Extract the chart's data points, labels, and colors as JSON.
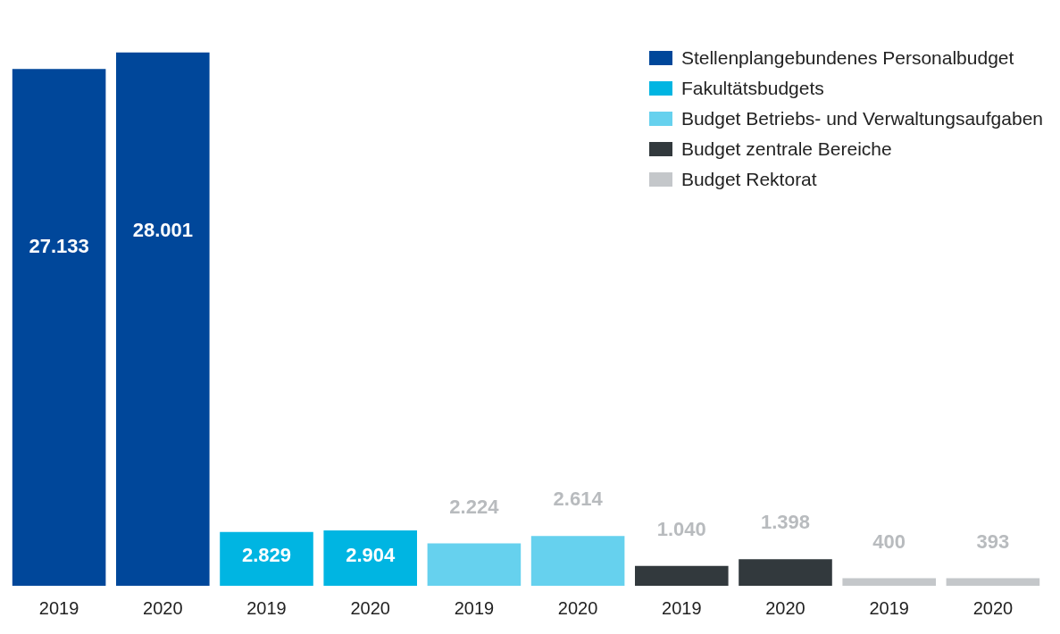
{
  "chart_data": {
    "type": "bar",
    "categories": [
      "2019",
      "2020",
      "2019",
      "2020",
      "2019",
      "2020",
      "2019",
      "2020",
      "2019",
      "2020"
    ],
    "series": [
      {
        "name": "Stellenplangebundenes Personalbudget",
        "color": "#00479a",
        "values": [
          27133,
          28001,
          null,
          null,
          null,
          null,
          null,
          null,
          null,
          null
        ],
        "value_labels": [
          "27.133",
          "28.001",
          null,
          null,
          null,
          null,
          null,
          null,
          null,
          null
        ]
      },
      {
        "name": "Fakultätsbudgets",
        "color": "#00b5e2",
        "values": [
          null,
          null,
          2829,
          2904,
          null,
          null,
          null,
          null,
          null,
          null
        ],
        "value_labels": [
          null,
          null,
          "2.829",
          "2.904",
          null,
          null,
          null,
          null,
          null,
          null
        ]
      },
      {
        "name": "Budget Betriebs- und Verwaltungsaufgaben",
        "color": "#66d1ee",
        "values": [
          null,
          null,
          null,
          null,
          2224,
          2614,
          null,
          null,
          null,
          null
        ],
        "value_labels": [
          null,
          null,
          null,
          null,
          "2.224",
          "2.614",
          null,
          null,
          null,
          null
        ]
      },
      {
        "name": "Budget zentrale Bereiche",
        "color": "#32393d",
        "values": [
          null,
          null,
          null,
          null,
          null,
          null,
          1040,
          1398,
          null,
          null
        ],
        "value_labels": [
          null,
          null,
          null,
          null,
          null,
          null,
          "1.040",
          "1.398",
          null,
          null
        ]
      },
      {
        "name": "Budget Rektorat",
        "color": "#c4c7ca",
        "values": [
          null,
          null,
          null,
          null,
          null,
          null,
          null,
          null,
          400,
          393
        ],
        "value_labels": [
          null,
          null,
          null,
          null,
          null,
          null,
          null,
          null,
          "400",
          "393"
        ]
      }
    ],
    "legend": "top right",
    "grid": false,
    "tick_labels": "x"
  }
}
